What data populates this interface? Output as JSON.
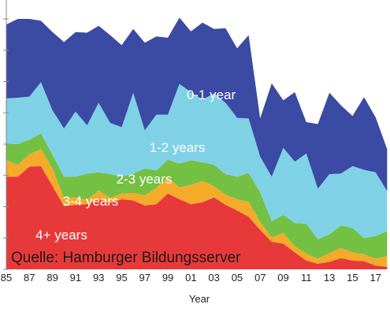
{
  "chart_data": {
    "type": "area",
    "stacked": true,
    "xlabel": "Year",
    "x": [
      1985,
      1986,
      1987,
      1988,
      1989,
      1990,
      1991,
      1992,
      1993,
      1994,
      1995,
      1996,
      1997,
      1998,
      1999,
      2000,
      2001,
      2002,
      2003,
      2004,
      2005,
      2006,
      2007,
      2008,
      2009,
      2010,
      2011,
      2012,
      2013,
      2014,
      2015,
      2016,
      2017,
      2018
    ],
    "tick_labels": [
      "85",
      "87",
      "89",
      "91",
      "93",
      "95",
      "97",
      "99",
      "01",
      "03",
      "05",
      "07",
      "09",
      "11",
      "13",
      "15",
      "17"
    ],
    "tick_years": [
      1985,
      1987,
      1989,
      1991,
      1993,
      1995,
      1997,
      1999,
      2001,
      2003,
      2005,
      2007,
      2009,
      2011,
      2013,
      2015,
      2017
    ],
    "xlim": [
      1985,
      2018.25
    ],
    "ylim": [
      0,
      40
    ],
    "grid": false,
    "series": [
      {
        "name": "4+ years",
        "color": "#e8393a",
        "values": [
          14.8,
          14.8,
          16.4,
          16.5,
          13.3,
          10.1,
          10.3,
          10.4,
          11.2,
          10.6,
          11.2,
          11.0,
          10.2,
          10.4,
          12.1,
          11.2,
          10.4,
          10.7,
          11.5,
          10.3,
          9.4,
          8.4,
          6.3,
          4.4,
          4.1,
          2.7,
          1.4,
          0.9,
          1.2,
          1.8,
          1.4,
          1.3,
          0.6,
          0.4
        ]
      },
      {
        "name": "3-4 years",
        "color": "#f4ab2a",
        "values": [
          2.6,
          1.9,
          2.0,
          2.7,
          2.8,
          1.3,
          1.2,
          0.7,
          1.4,
          0.8,
          0.9,
          1.2,
          1.6,
          2.6,
          2.6,
          1.9,
          3.1,
          3.4,
          1.8,
          1.6,
          1.8,
          2.4,
          1.3,
          0.7,
          1.7,
          1.0,
          1.1,
          0.8,
          1.4,
          1.6,
          1.3,
          1.1,
          1.1,
          1.7
        ]
      },
      {
        "name": "2-3 years",
        "color": "#74c043",
        "values": [
          2.7,
          3.3,
          2.3,
          2.5,
          2.2,
          3.4,
          3.3,
          4.2,
          2.9,
          3.8,
          2.7,
          3.1,
          4.3,
          2.8,
          2.8,
          3.8,
          3.9,
          3.0,
          3.4,
          3.3,
          3.6,
          4.6,
          4.7,
          2.6,
          2.9,
          3.7,
          4.8,
          3.1,
          3.0,
          3.6,
          3.9,
          2.6,
          3.6,
          4.0
        ]
      },
      {
        "name": "1-2 years",
        "color": "#7fd1e6",
        "values": [
          7.2,
          7.4,
          6.9,
          8.2,
          7.1,
          7.7,
          10.4,
          7.7,
          11.1,
          8.2,
          7.9,
          12.9,
          6.1,
          8.9,
          7.2,
          12.7,
          10.9,
          10.0,
          11.4,
          11.4,
          9.4,
          8.7,
          5.7,
          7.1,
          10.7,
          9.8,
          11.2,
          8.1,
          9.6,
          8.3,
          9.9,
          10.9,
          10.2,
          6.4
        ]
      },
      {
        "name": "0-1 year",
        "color": "#3b4aa3",
        "values": [
          11.8,
          12.6,
          12.4,
          9.8,
          12.5,
          13.8,
          12.7,
          14.8,
          12.3,
          14.0,
          13.1,
          10.2,
          14.0,
          12.5,
          12.3,
          10.6,
          9.7,
          12.3,
          10.3,
          11.9,
          11.1,
          13.3,
          6.1,
          14.9,
          7.6,
          11.1,
          5.0,
          10.3,
          13.0,
          10.9,
          8.0,
          11.6,
          8.8,
          6.7
        ]
      }
    ],
    "annotations": [
      "Quelle: Hamburger Bildungsserver"
    ]
  }
}
